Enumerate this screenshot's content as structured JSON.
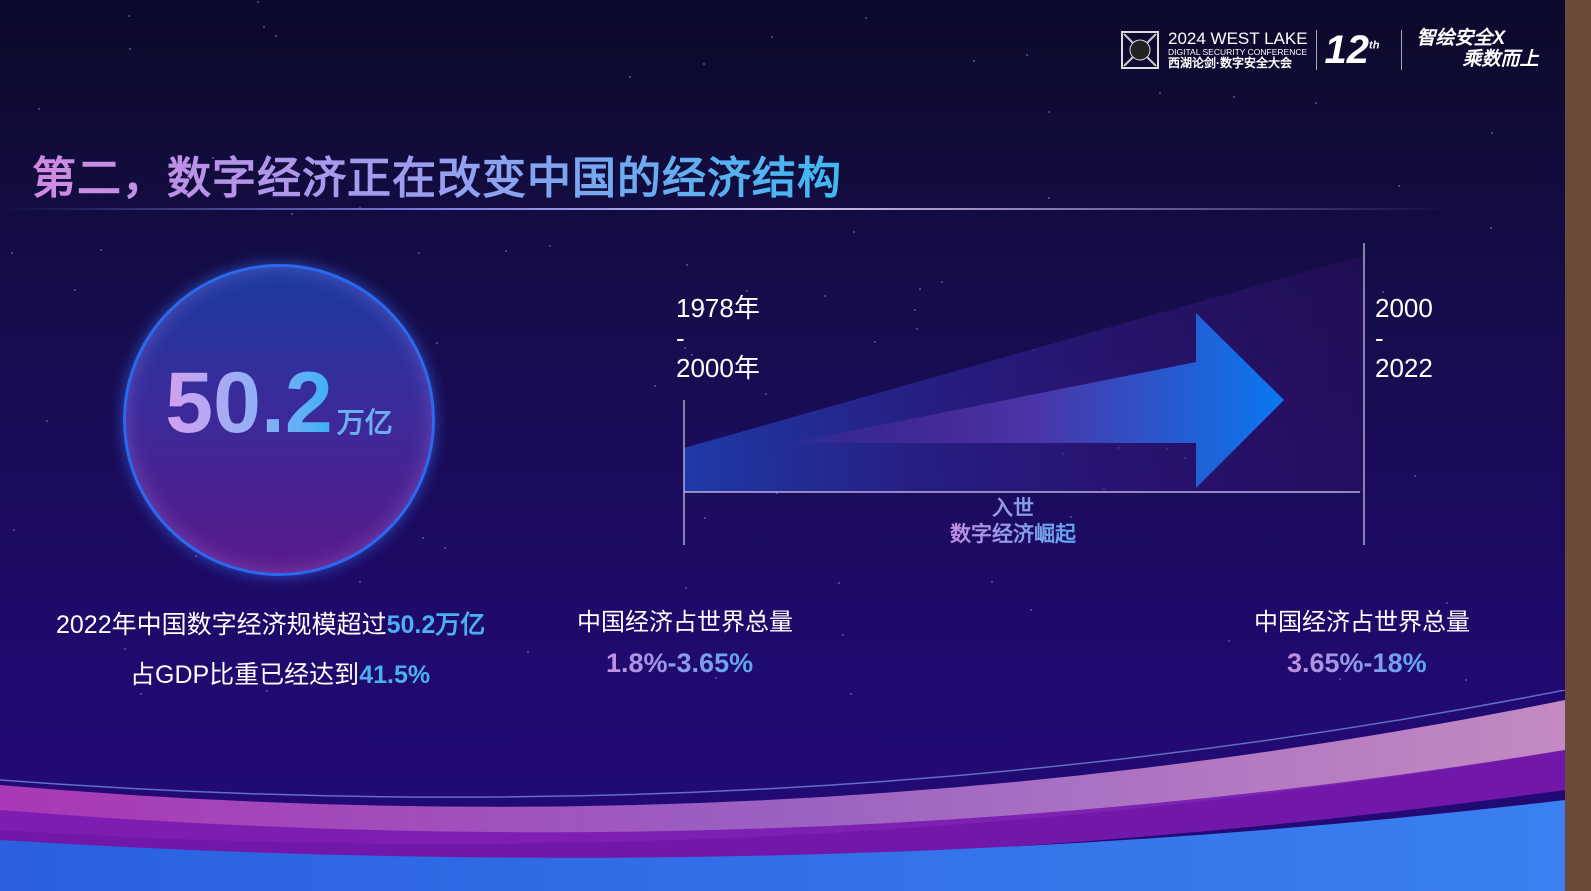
{
  "header": {
    "logo_line1": "2024 WEST LAKE",
    "logo_line2": "DIGITAL SECURITY CONFERENCE",
    "logo_line3": "西湖论剑·数字安全大会",
    "edition": "12",
    "edition_sup": "th",
    "slogan_line1": "智绘安全X",
    "slogan_line2": "乘数而上"
  },
  "title": "第二，数字经济正在改变中国的经济结构",
  "stat": {
    "value": "50.2",
    "unit": "万亿",
    "caption1_prefix": "2022年中国数字经济规模超过",
    "caption1_highlight": "50.2万亿",
    "caption2_prefix": "占GDP比重已经达到",
    "caption2_highlight": "41.5%"
  },
  "timeline": {
    "period1": {
      "start": "1978年",
      "dash": "-",
      "end": "2000年",
      "label": "中国经济占世界总量",
      "value": "1.8%-3.65%"
    },
    "period2": {
      "start": "2000",
      "dash": "-",
      "end": "2022",
      "label": "中国经济占世界总量",
      "value": "3.65%-18%"
    },
    "milestone1": "入世",
    "milestone2": "数字经济崛起"
  },
  "colors": {
    "background": "#1d0b66",
    "accent_blue": "#4ab0f0",
    "accent_purple": "#c48de0",
    "arrow": "#0a78f0"
  }
}
